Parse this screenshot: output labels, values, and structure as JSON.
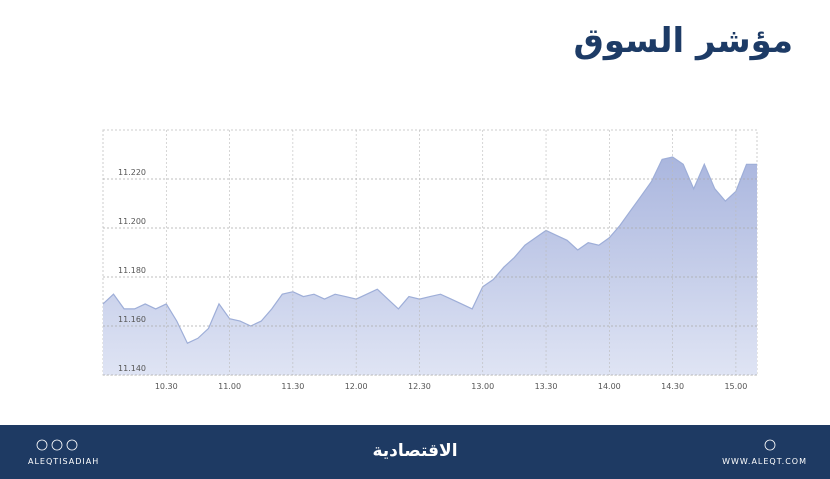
{
  "chart_data": {
    "type": "area",
    "title": "مؤشر السوق",
    "x": [
      "10.00",
      "10.05",
      "10.10",
      "10.15",
      "10.20",
      "10.25",
      "10.30",
      "10.35",
      "10.40",
      "10.45",
      "10.50",
      "10.55",
      "11.00",
      "11.05",
      "11.10",
      "11.15",
      "11.20",
      "11.25",
      "11.30",
      "11.35",
      "11.40",
      "11.45",
      "11.50",
      "11.55",
      "12.00",
      "12.05",
      "12.10",
      "12.15",
      "12.20",
      "12.25",
      "12.30",
      "12.35",
      "12.40",
      "12.45",
      "12.50",
      "12.55",
      "13.00",
      "13.05",
      "13.10",
      "13.15",
      "13.20",
      "13.25",
      "13.30",
      "13.35",
      "13.40",
      "13.45",
      "13.50",
      "13.55",
      "14.00",
      "14.05",
      "14.10",
      "14.15",
      "14.20",
      "14.25",
      "14.30",
      "14.35",
      "14.40",
      "14.45",
      "14.50",
      "14.55",
      "15.00",
      "15.05",
      "15.10"
    ],
    "values": [
      11.169,
      11.173,
      11.167,
      11.167,
      11.169,
      11.167,
      11.169,
      11.162,
      11.153,
      11.155,
      11.159,
      11.169,
      11.163,
      11.162,
      11.16,
      11.162,
      11.167,
      11.173,
      11.174,
      11.172,
      11.173,
      11.171,
      11.173,
      11.172,
      11.171,
      11.173,
      11.175,
      11.171,
      11.167,
      11.172,
      11.171,
      11.172,
      11.173,
      11.171,
      11.169,
      11.167,
      11.176,
      11.179,
      11.184,
      11.188,
      11.193,
      11.196,
      11.199,
      11.197,
      11.195,
      11.191,
      11.194,
      11.193,
      11.196,
      11.201,
      11.207,
      11.213,
      11.219,
      11.228,
      11.229,
      11.226,
      11.216,
      11.226,
      11.216,
      11.211,
      11.215,
      11.226,
      11.226
    ],
    "color": "#9eaed8",
    "xlim": [
      "10.00",
      "15.10"
    ],
    "xticks": [
      "10.30",
      "11.00",
      "11.30",
      "12.00",
      "12.30",
      "13.00",
      "13.30",
      "14.00",
      "14.30",
      "15.00"
    ],
    "ylim": [
      11.14,
      11.24
    ],
    "yticks": [
      {
        "value": 11.14,
        "label": "11.140"
      },
      {
        "value": 11.16,
        "label": "11.160"
      },
      {
        "value": 11.18,
        "label": "11.180"
      },
      {
        "value": 11.2,
        "label": "11.200"
      },
      {
        "value": 11.22,
        "label": "11.220"
      }
    ],
    "grid": true
  },
  "footer": {
    "left": "ALEQTISADIAH",
    "center": "الاقتصادية",
    "right": "WWW.ALEQT.COM"
  }
}
